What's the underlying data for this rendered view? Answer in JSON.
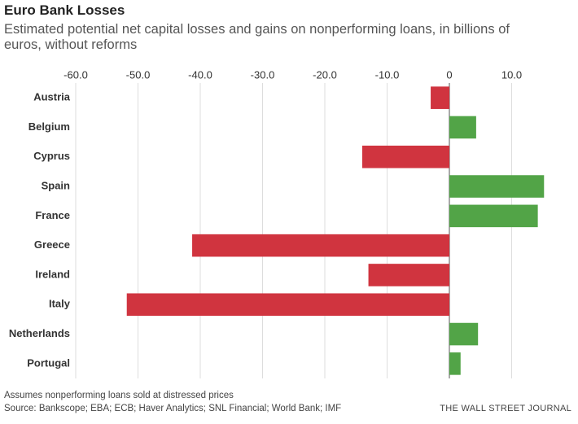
{
  "chart_data": {
    "type": "hbar",
    "title": "Euro Bank Losses",
    "subtitle": "Estimated potential net capital losses and gains on nonperforming loans, in billions of euros, without reforms",
    "categories": [
      "Austria",
      "Belgium",
      "Cyprus",
      "Spain",
      "France",
      "Greece",
      "Ireland",
      "Italy",
      "Netherlands",
      "Portugal"
    ],
    "values": [
      -3.0,
      4.3,
      -14.0,
      15.2,
      14.2,
      -41.3,
      -13.0,
      -51.8,
      4.6,
      1.8
    ],
    "positive_color": "#52a447",
    "negative_color": "#d0343f",
    "xlim": [
      -60,
      20
    ],
    "xticks": [
      {
        "value": -60,
        "label": "-60.0"
      },
      {
        "value": -50,
        "label": "-50.0"
      },
      {
        "value": -40,
        "label": "-40.0"
      },
      {
        "value": -30,
        "label": "-30.0"
      },
      {
        "value": -20,
        "label": "-20.0"
      },
      {
        "value": -10,
        "label": "-10.0"
      },
      0,
      {
        "value": 10,
        "label": "10.0"
      }
    ],
    "grid": true,
    "note": "Assumes nonperforming loans sold at distressed prices",
    "source": "Source: Bankscope; EBA; ECB; Haver Analytics; SNL Financial; World Bank; IMF",
    "credit": "THE WALL STREET JOURNAL"
  }
}
